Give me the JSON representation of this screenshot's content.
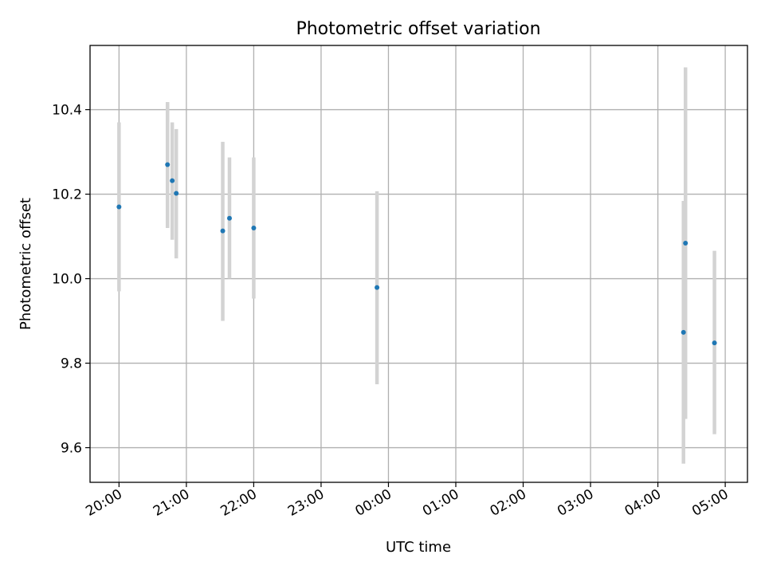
{
  "chart_data": {
    "type": "scatter",
    "title": "Photometric offset variation",
    "xlabel": "UTC time",
    "ylabel": "Photometric offset",
    "xlim_hours": [
      19.57,
      29.33
    ],
    "ylim": [
      9.518,
      10.552
    ],
    "grid": true,
    "x_ticks": [
      {
        "hour": 20,
        "label": "20:00"
      },
      {
        "hour": 21,
        "label": "21:00"
      },
      {
        "hour": 22,
        "label": "22:00"
      },
      {
        "hour": 23,
        "label": "23:00"
      },
      {
        "hour": 24,
        "label": "00:00"
      },
      {
        "hour": 25,
        "label": "01:00"
      },
      {
        "hour": 26,
        "label": "02:00"
      },
      {
        "hour": 27,
        "label": "03:00"
      },
      {
        "hour": 28,
        "label": "04:00"
      },
      {
        "hour": 29,
        "label": "05:00"
      }
    ],
    "y_ticks": [
      {
        "value": 9.6,
        "label": "9.6"
      },
      {
        "value": 9.8,
        "label": "9.8"
      },
      {
        "value": 10.0,
        "label": "10.0"
      },
      {
        "value": 10.2,
        "label": "10.2"
      },
      {
        "value": 10.4,
        "label": "10.4"
      }
    ],
    "points": [
      {
        "time": "20:00",
        "hour": 20.0,
        "value": 10.17,
        "err_low": 9.97,
        "err_high": 10.37
      },
      {
        "time": "20:43",
        "hour": 20.72,
        "value": 10.27,
        "err_low": 10.12,
        "err_high": 10.418
      },
      {
        "time": "20:47",
        "hour": 20.79,
        "value": 10.232,
        "err_low": 10.092,
        "err_high": 10.37
      },
      {
        "time": "20:51",
        "hour": 20.85,
        "value": 10.202,
        "err_low": 10.048,
        "err_high": 10.354
      },
      {
        "time": "21:32",
        "hour": 21.54,
        "value": 10.113,
        "err_low": 9.9,
        "err_high": 10.324
      },
      {
        "time": "21:38",
        "hour": 21.64,
        "value": 10.143,
        "err_low": 10.0,
        "err_high": 10.287
      },
      {
        "time": "22:00",
        "hour": 22.0,
        "value": 10.12,
        "err_low": 9.953,
        "err_high": 10.287
      },
      {
        "time": "23:50",
        "hour": 23.83,
        "value": 9.979,
        "err_low": 9.75,
        "err_high": 10.207
      },
      {
        "time": "04:23",
        "hour": 28.38,
        "value": 9.873,
        "err_low": 9.562,
        "err_high": 10.184
      },
      {
        "time": "04:24",
        "hour": 28.41,
        "value": 10.084,
        "err_low": 9.668,
        "err_high": 10.5
      },
      {
        "time": "04:50",
        "hour": 28.84,
        "value": 9.848,
        "err_low": 9.632,
        "err_high": 10.066
      }
    ],
    "colors": {
      "point": "#1f77b4",
      "errorbar": "#d3d3d3",
      "grid": "#b0b0b0"
    }
  }
}
